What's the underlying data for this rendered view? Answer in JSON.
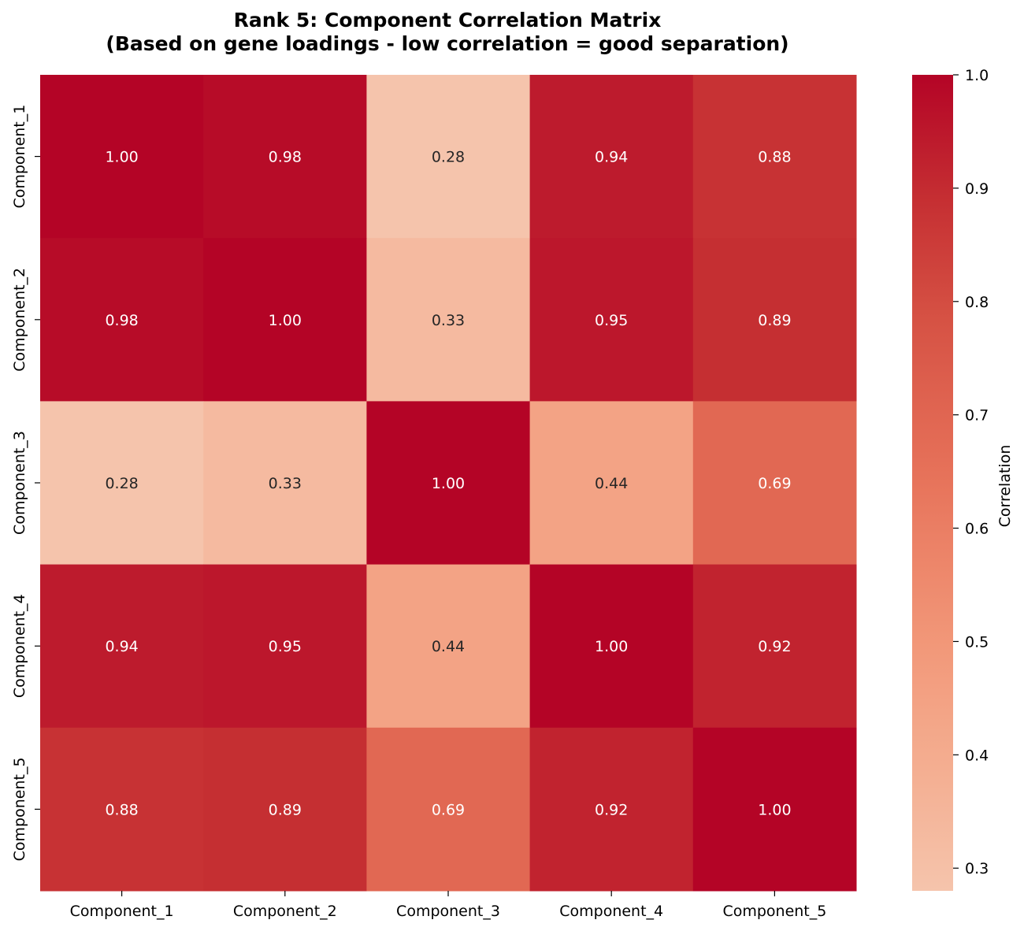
{
  "chart_data": {
    "type": "heatmap",
    "title_line1": "Rank 5: Component Correlation Matrix",
    "title_line2": "(Based on gene loadings - low correlation = good separation)",
    "x_categories": [
      "Component_1",
      "Component_2",
      "Component_3",
      "Component_4",
      "Component_5"
    ],
    "y_categories": [
      "Component_1",
      "Component_2",
      "Component_3",
      "Component_4",
      "Component_5"
    ],
    "values": [
      [
        1.0,
        0.98,
        0.28,
        0.94,
        0.88
      ],
      [
        0.98,
        1.0,
        0.33,
        0.95,
        0.89
      ],
      [
        0.28,
        0.33,
        1.0,
        0.44,
        0.69
      ],
      [
        0.94,
        0.95,
        0.44,
        1.0,
        0.92
      ],
      [
        0.88,
        0.89,
        0.69,
        0.92,
        1.0
      ]
    ],
    "value_format": "0.00",
    "colormap": "coolwarm (upper half)",
    "colorbar": {
      "label": "Correlation",
      "vmin": 0.28,
      "vmax": 1.0,
      "ticks": [
        "0.3",
        "0.4",
        "0.5",
        "0.6",
        "0.7",
        "0.8",
        "0.9",
        "1.0"
      ],
      "tick_values": [
        0.3,
        0.4,
        0.5,
        0.6,
        0.7,
        0.8,
        0.9,
        1.0
      ]
    },
    "colors": {
      "low": "#f5c4ac",
      "mid": "#e7745b",
      "high": "#b40426",
      "text_light": "#ffffff",
      "text_dark": "#262626"
    }
  }
}
